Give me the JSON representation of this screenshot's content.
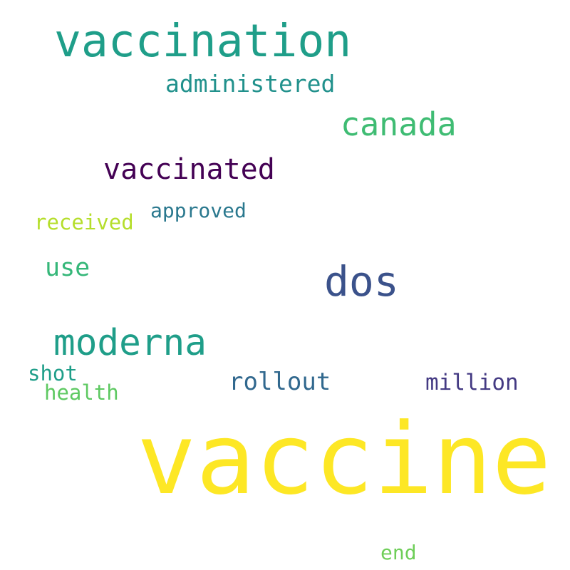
{
  "words": {
    "vaccine": {
      "text": "vaccine",
      "color": "#fde725"
    },
    "vaccination": {
      "text": "vaccination",
      "color": "#1f9e89"
    },
    "dos": {
      "text": "dos",
      "color": "#3b528b"
    },
    "moderna": {
      "text": "moderna",
      "color": "#1f9e89"
    },
    "canada": {
      "text": "canada",
      "color": "#3fbc73"
    },
    "vaccinated": {
      "text": "vaccinated",
      "color": "#440154"
    },
    "administered": {
      "text": "administered",
      "color": "#21918c"
    },
    "rollout": {
      "text": "rollout",
      "color": "#31688e"
    },
    "use": {
      "text": "use",
      "color": "#35b779"
    },
    "million": {
      "text": "million",
      "color": "#443a83"
    },
    "received": {
      "text": "received",
      "color": "#b5de2b"
    },
    "approved": {
      "text": "approved",
      "color": "#2a788e"
    },
    "shot": {
      "text": "shot",
      "color": "#1f9e89"
    },
    "health": {
      "text": "health",
      "color": "#5ec962"
    },
    "end": {
      "text": "end",
      "color": "#6ece58"
    }
  }
}
